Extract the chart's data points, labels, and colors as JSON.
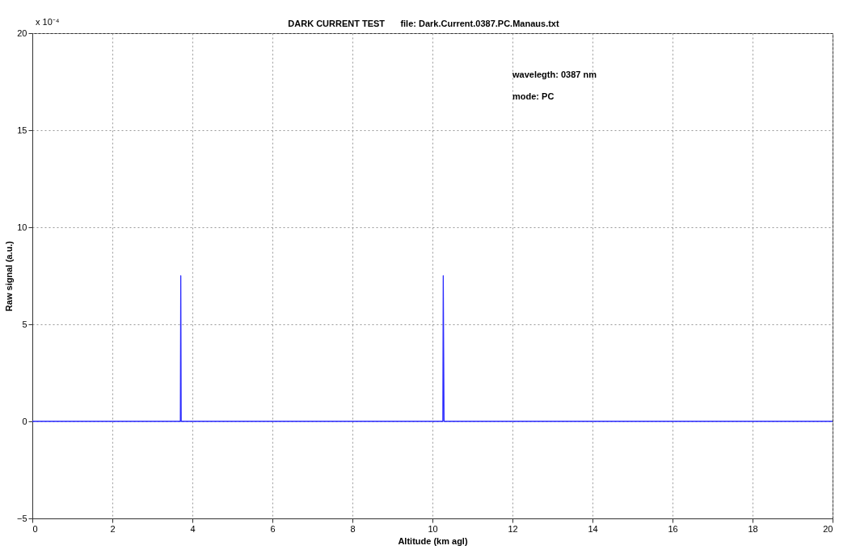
{
  "chart_data": {
    "type": "line",
    "title": "DARK CURRENT TEST",
    "subtitle": "file: Dark.Current.0387.PC.Manaus.txt",
    "xlabel": "Altitude (km agl)",
    "ylabel": "Raw signal (a.u.)",
    "annotations": [
      "wavelegth: 0387 nm",
      "mode: PC",
      "x 10⁻⁴"
    ],
    "series": [
      {
        "color": "#2a2aff",
        "x": [
          0,
          3.7,
          3.71,
          3.72,
          10.26,
          10.27,
          10.28,
          10.29,
          20
        ],
        "values": [
          0,
          0,
          7.5,
          0,
          0,
          7.5,
          3.7,
          0,
          0
        ]
      }
    ],
    "xlim": [
      0,
      20
    ],
    "xticks": [
      0,
      2,
      4,
      6,
      8,
      10,
      12,
      14,
      16,
      18,
      20
    ],
    "ylim": [
      -5,
      20
    ],
    "yticks": [
      -5,
      0,
      5,
      10,
      15,
      20
    ],
    "grid": true,
    "line_style": "solid",
    "marker": "none"
  }
}
